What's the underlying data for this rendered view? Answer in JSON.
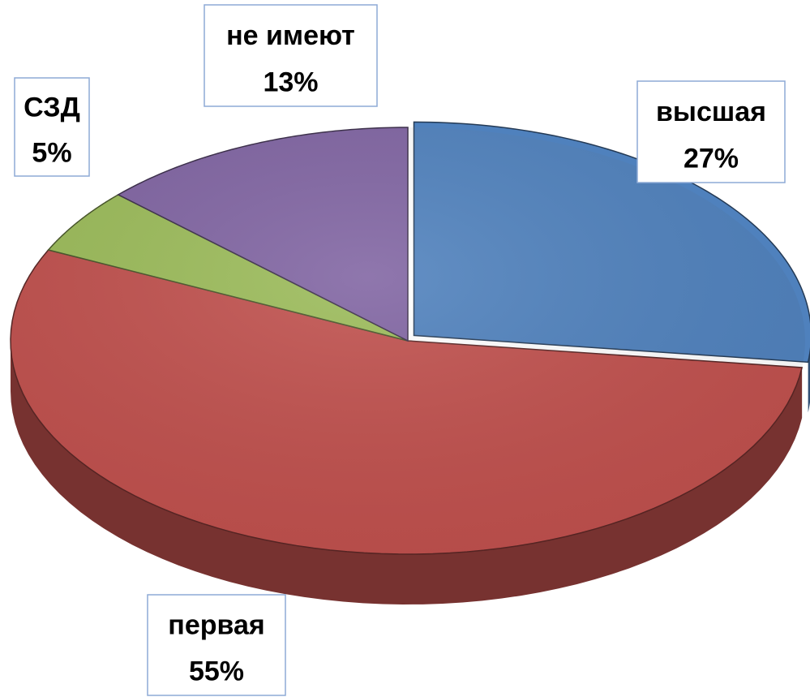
{
  "chart_data": {
    "type": "pie",
    "categories": [
      "высшая",
      "первая",
      "СЗД",
      "не имеют"
    ],
    "values": [
      27,
      55,
      5,
      13
    ],
    "value_labels": [
      "27%",
      "55%",
      "5%",
      "13%"
    ],
    "colors": [
      "#4f81bd",
      "#c0504d",
      "#9bbb59",
      "#8064a2"
    ]
  }
}
